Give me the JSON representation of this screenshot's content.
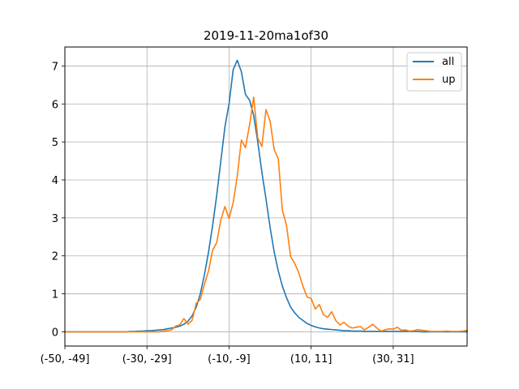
{
  "chart_data": {
    "type": "line",
    "title": "2019-11-20ma1of30",
    "xlabel": "",
    "ylabel": "",
    "x_tick_labels": [
      "(-50, -49]",
      "(-30, -29]",
      "(-10, -9]",
      "(10, 11]",
      "(30, 31]"
    ],
    "x_tick_index": [
      0,
      20,
      40,
      60,
      80
    ],
    "x_index_range": [
      0,
      98
    ],
    "y_ticks": [
      0,
      1,
      2,
      3,
      4,
      5,
      6,
      7
    ],
    "ylim": [
      -0.375,
      7.5
    ],
    "grid": true,
    "legend_position": "upper right",
    "series": [
      {
        "name": "all",
        "color": "#1f77b4",
        "values": [
          0,
          0,
          0,
          0,
          0,
          0,
          0,
          0,
          0,
          0,
          0,
          0,
          0,
          0,
          0,
          0,
          0.01,
          0.01,
          0.02,
          0.02,
          0.03,
          0.03,
          0.04,
          0.05,
          0.06,
          0.08,
          0.1,
          0.12,
          0.15,
          0.2,
          0.28,
          0.42,
          0.65,
          1.0,
          1.5,
          2.1,
          2.8,
          3.6,
          4.5,
          5.4,
          6.0,
          6.9,
          7.15,
          6.85,
          6.25,
          6.1,
          5.7,
          5.0,
          4.2,
          3.5,
          2.75,
          2.1,
          1.6,
          1.2,
          0.9,
          0.65,
          0.5,
          0.38,
          0.3,
          0.22,
          0.17,
          0.13,
          0.1,
          0.08,
          0.07,
          0.06,
          0.05,
          0.04,
          0.03,
          0.03,
          0.02,
          0.02,
          0.02,
          0.01,
          0.01,
          0.01,
          0.01,
          0.01,
          0.01,
          0.01,
          0.01,
          0.01,
          0.01,
          0.01,
          0.01,
          0.01,
          0.01,
          0,
          0,
          0,
          0,
          0,
          0,
          0,
          0,
          0,
          0,
          0,
          0
        ]
      },
      {
        "name": "up",
        "color": "#ff7f0e",
        "values": [
          0,
          0,
          0,
          0,
          0,
          0,
          0,
          0,
          0,
          0,
          0,
          0,
          0,
          0,
          0,
          0,
          0,
          0,
          0,
          0,
          0,
          0,
          0,
          0,
          0.02,
          0.03,
          0.05,
          0.15,
          0.18,
          0.35,
          0.2,
          0.3,
          0.75,
          0.85,
          1.25,
          1.6,
          2.15,
          2.35,
          2.95,
          3.3,
          2.98,
          3.4,
          4.1,
          5.05,
          4.85,
          5.45,
          6.18,
          5.1,
          4.88,
          5.85,
          5.55,
          4.8,
          4.55,
          3.2,
          2.8,
          1.98,
          1.8,
          1.55,
          1.2,
          0.92,
          0.88,
          0.6,
          0.72,
          0.45,
          0.38,
          0.53,
          0.3,
          0.18,
          0.25,
          0.15,
          0.1,
          0.12,
          0.14,
          0.05,
          0.12,
          0.2,
          0.1,
          0.02,
          0.05,
          0.08,
          0.07,
          0.12,
          0.04,
          0.05,
          0.02,
          0.03,
          0.06,
          0.04,
          0.03,
          0.01,
          0.01,
          0.01,
          0.01,
          0.02,
          0.01,
          0.01,
          0.01,
          0.02,
          0.04
        ]
      }
    ]
  }
}
